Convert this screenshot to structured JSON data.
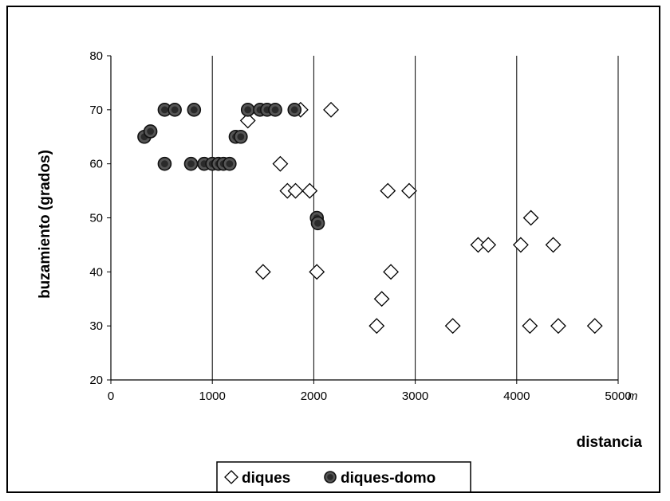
{
  "chart_data": {
    "type": "scatter",
    "title": "",
    "xlabel": "distancia",
    "x_unit": "m",
    "ylabel": "buzamiento (grados)",
    "xlim": [
      0,
      5000
    ],
    "ylim": [
      20,
      80
    ],
    "x_ticks": [
      "0",
      "1000",
      "2000",
      "3000",
      "4000",
      "5000"
    ],
    "y_ticks": [
      "20",
      "30",
      "40",
      "50",
      "60",
      "70",
      "80"
    ],
    "grid": "vertical",
    "legend": "bottom",
    "series": [
      {
        "name": "diques",
        "marker": "diamond-open",
        "color": "#000000",
        "points": [
          [
            1350,
            68
          ],
          [
            1500,
            40
          ],
          [
            1670,
            60
          ],
          [
            1740,
            55
          ],
          [
            1820,
            55
          ],
          [
            1870,
            70
          ],
          [
            1960,
            55
          ],
          [
            2030,
            40
          ],
          [
            2170,
            70
          ],
          [
            2620,
            30
          ],
          [
            2670,
            35
          ],
          [
            2730,
            55
          ],
          [
            2760,
            40
          ],
          [
            2940,
            55
          ],
          [
            3370,
            30
          ],
          [
            3620,
            45
          ],
          [
            3720,
            45
          ],
          [
            4040,
            45
          ],
          [
            4130,
            30
          ],
          [
            4140,
            50
          ],
          [
            4360,
            45
          ],
          [
            4410,
            30
          ],
          [
            4770,
            30
          ]
        ]
      },
      {
        "name": "diques-domo",
        "marker": "circle-filled",
        "color": "#555555",
        "points": [
          [
            330,
            65
          ],
          [
            390,
            66
          ],
          [
            530,
            70
          ],
          [
            530,
            60
          ],
          [
            630,
            70
          ],
          [
            790,
            60
          ],
          [
            820,
            70
          ],
          [
            920,
            60
          ],
          [
            1000,
            60
          ],
          [
            1060,
            60
          ],
          [
            1110,
            60
          ],
          [
            1170,
            60
          ],
          [
            1230,
            65
          ],
          [
            1280,
            65
          ],
          [
            1350,
            70
          ],
          [
            1470,
            70
          ],
          [
            1540,
            70
          ],
          [
            1620,
            70
          ],
          [
            1810,
            70
          ],
          [
            2030,
            50
          ],
          [
            2040,
            49
          ]
        ]
      }
    ]
  }
}
